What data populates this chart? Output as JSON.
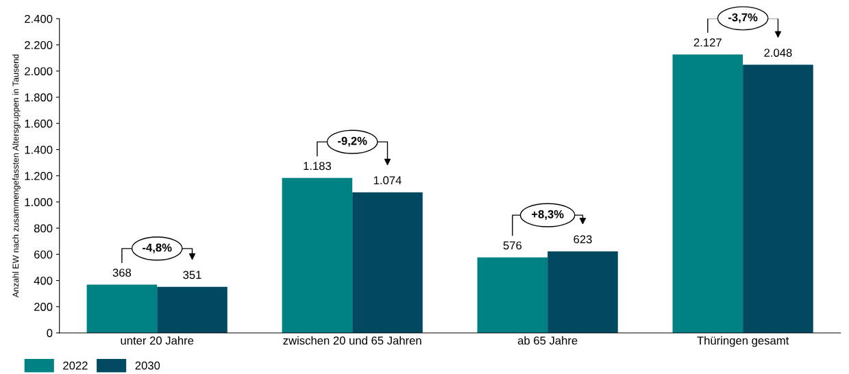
{
  "chart_data": {
    "type": "bar",
    "ylabel": "Anzahl EW nach zusammengefassten Altersgruppen in Tausend",
    "categories": [
      "unter 20 Jahre",
      "zwischen 20 und 65 Jahren",
      "ab 65 Jahre",
      "Thüringen gesamt"
    ],
    "series": [
      {
        "name": "2022",
        "color": "#008284",
        "values": [
          368,
          1183,
          576,
          2127
        ],
        "value_labels": [
          "368",
          "1.183",
          "576",
          "2.127"
        ]
      },
      {
        "name": "2030",
        "color": "#004960",
        "values": [
          351,
          1074,
          623,
          2048
        ],
        "value_labels": [
          "351",
          "1.074",
          "623",
          "2.048"
        ]
      }
    ],
    "ylim": [
      0,
      2400
    ],
    "yticks": [
      0,
      200,
      400,
      600,
      800,
      {
        "value": 1000,
        "label": "1.000"
      },
      {
        "value": 1200,
        "label": "1.200"
      },
      {
        "value": 1400,
        "label": "1.400"
      },
      {
        "value": 1600,
        "label": "1.600"
      },
      {
        "value": 1800,
        "label": "1.800"
      },
      {
        "value": 2000,
        "label": "2.000"
      },
      {
        "value": 2200,
        "label": "2.200"
      },
      {
        "value": 2400,
        "label": "2.400"
      }
    ],
    "annotations": [
      "-4,8%",
      "-9,2%",
      "+8,3%",
      "-3,7%"
    ],
    "grid": false,
    "legend": "bottom left"
  }
}
